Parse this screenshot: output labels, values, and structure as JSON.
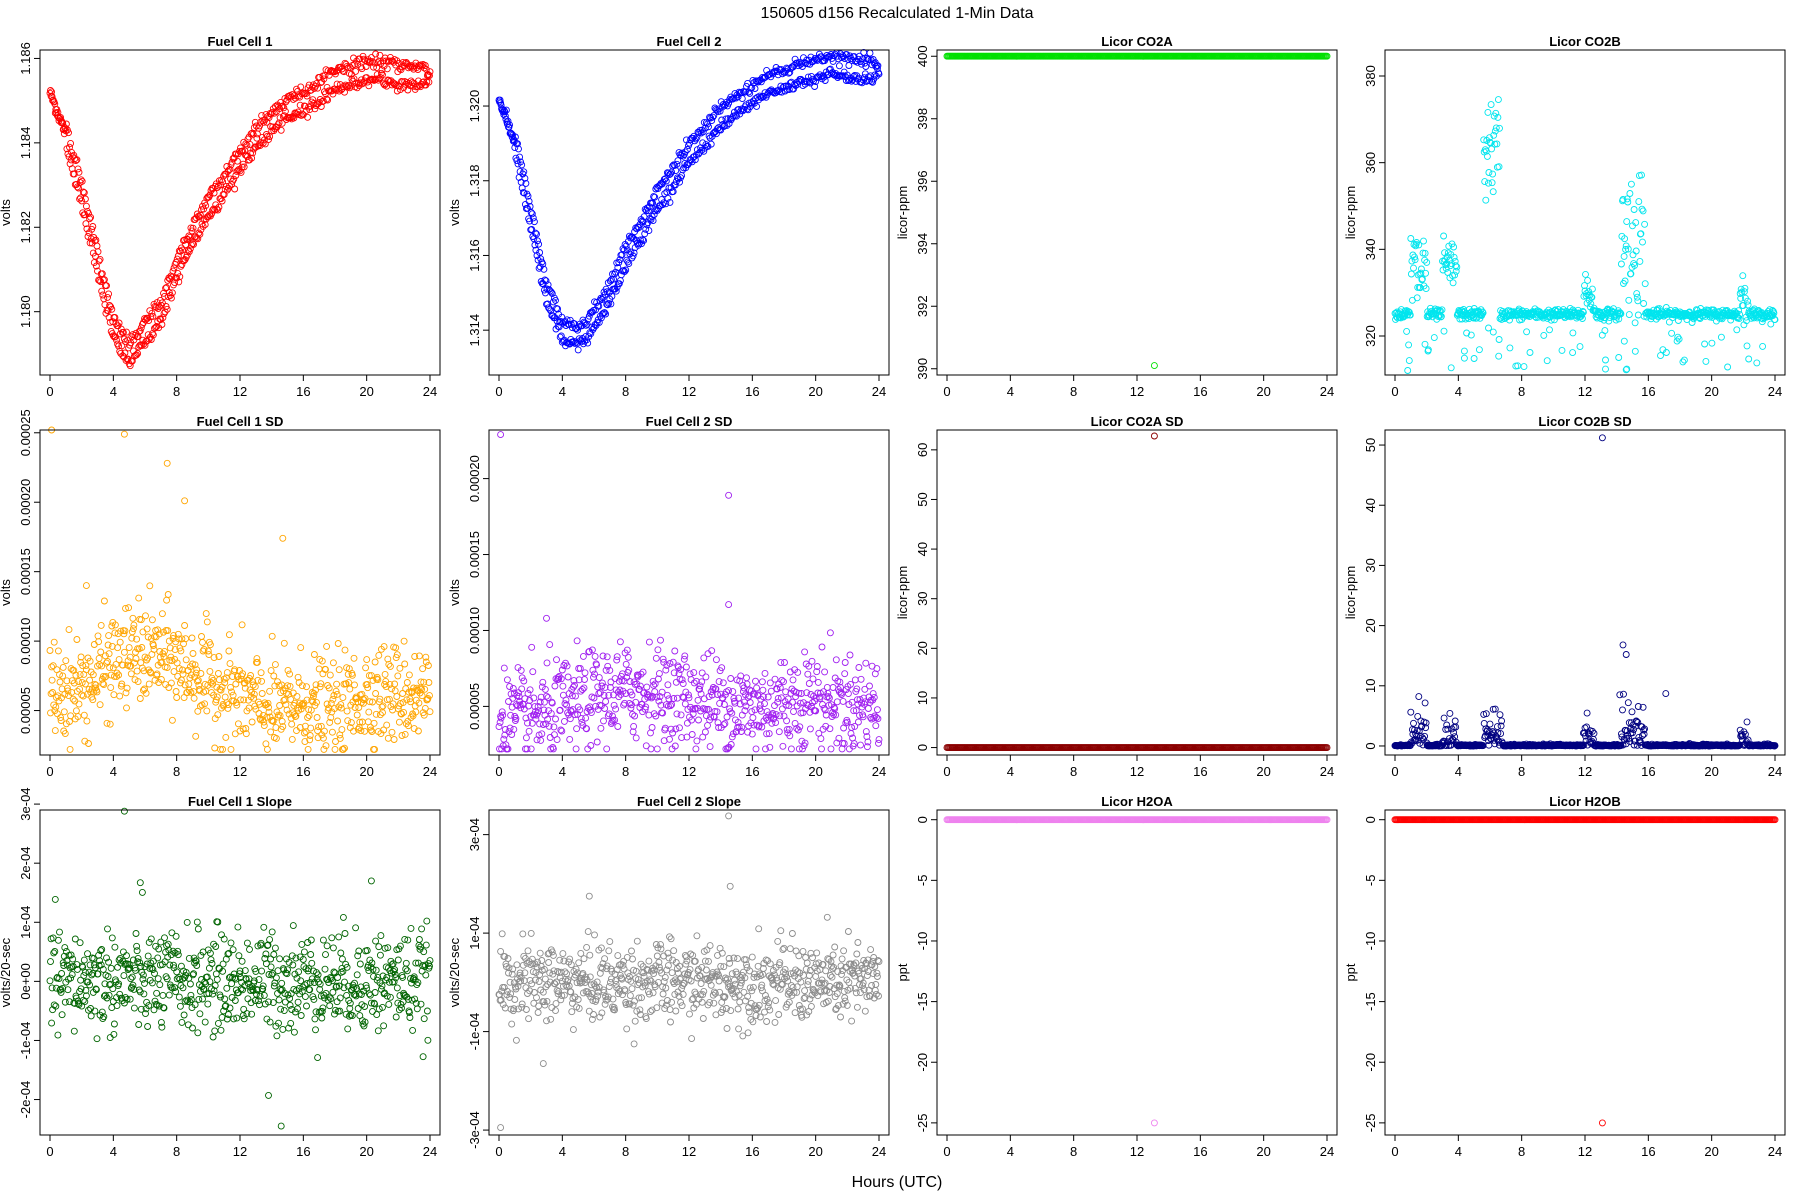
{
  "figure": {
    "suptitle": "150605   d156   Recalculated 1-Min Data",
    "xlabel": "Hours (UTC)"
  },
  "chart_data": [
    {
      "type": "scatter",
      "title": "Fuel Cell 1",
      "ylabel": "volts",
      "color": "#ff0000",
      "xlim": [
        0,
        24
      ],
      "ylim": [
        1.1785,
        1.1862
      ],
      "xticks": [
        0,
        4,
        8,
        12,
        16,
        20,
        24
      ],
      "yticks": [
        1.18,
        1.182,
        1.184,
        1.186
      ],
      "ytick_labels": [
        "1.180",
        "1.182",
        "1.184",
        "1.186"
      ],
      "series": [
        {
          "gen": "fc1",
          "x": [
            0,
            1,
            2,
            3,
            4,
            5,
            6,
            7,
            8,
            9,
            10,
            11,
            12,
            13,
            14,
            15,
            16,
            17,
            18,
            19,
            20,
            21,
            22,
            23,
            24
          ],
          "y": [
            1.1852,
            1.1842,
            1.1828,
            1.1812,
            1.1796,
            1.179,
            1.1795,
            1.18,
            1.181,
            1.1818,
            1.1825,
            1.183,
            1.1836,
            1.1841,
            1.1845,
            1.1848,
            1.185,
            1.1852,
            1.1855,
            1.1856,
            1.1857,
            1.1857,
            1.1856,
            1.1856,
            1.1856
          ],
          "offset": 0.00045,
          "noise": 0.00022
        }
      ]
    },
    {
      "type": "scatter",
      "title": "Fuel Cell 2",
      "ylabel": "volts",
      "color": "#0000ff",
      "xlim": [
        0,
        24
      ],
      "ylim": [
        1.3128,
        1.3215
      ],
      "xticks": [
        0,
        4,
        8,
        12,
        16,
        20,
        24
      ],
      "yticks": [
        1.314,
        1.316,
        1.318,
        1.32
      ],
      "ytick_labels": [
        "1.314",
        "1.316",
        "1.318",
        "1.320"
      ],
      "series": [
        {
          "gen": "fc2",
          "x": [
            0,
            1,
            2,
            3,
            4,
            5,
            6,
            7,
            8,
            9,
            10,
            11,
            12,
            13,
            14,
            15,
            16,
            17,
            18,
            19,
            20,
            21,
            22,
            23,
            24
          ],
          "y": [
            1.3202,
            1.319,
            1.317,
            1.315,
            1.314,
            1.3138,
            1.3143,
            1.315,
            1.316,
            1.3167,
            1.3175,
            1.3181,
            1.3187,
            1.3192,
            1.3197,
            1.32,
            1.3203,
            1.3206,
            1.3207,
            1.3209,
            1.321,
            1.3211,
            1.321,
            1.321,
            1.321
          ],
          "offset": 0.0005,
          "noise": 0.00022
        }
      ]
    },
    {
      "type": "scatter",
      "title": "Licor CO2A",
      "ylabel": "licor-ppm",
      "color": "#00e000",
      "xlim": [
        0,
        24
      ],
      "ylim": [
        389.8,
        400.2
      ],
      "xticks": [
        0,
        4,
        8,
        12,
        16,
        20,
        24
      ],
      "yticks": [
        390,
        392,
        394,
        396,
        398,
        400
      ],
      "ytick_labels": [
        "390",
        "392",
        "394",
        "396",
        "398",
        "400"
      ],
      "series": [
        {
          "gen": "flat",
          "level": 400
        }
      ],
      "points": [
        [
          13.1,
          390.1
        ]
      ]
    },
    {
      "type": "scatter",
      "title": "Licor CO2B",
      "ylabel": "licor-ppm",
      "color": "#00e5ee",
      "xlim": [
        0,
        24
      ],
      "ylim": [
        311,
        386
      ],
      "xticks": [
        0,
        4,
        8,
        12,
        16,
        20,
        24
      ],
      "yticks": [
        320,
        340,
        360,
        380
      ],
      "ytick_labels": [
        "320",
        "340",
        "360",
        "380"
      ],
      "series": [
        {
          "gen": "co2b",
          "base": 325,
          "bursts": [
            [
              1.0,
              2.0,
              335,
              6
            ],
            [
              3.0,
              3.9,
              336,
              3
            ],
            [
              5.6,
              6.6,
              363,
              6
            ],
            [
              11.9,
              12.6,
              330,
              4
            ],
            [
              14.3,
              15.8,
              342,
              9
            ],
            [
              21.8,
              22.3,
              329,
              4
            ]
          ]
        }
      ]
    },
    {
      "type": "scatter",
      "title": "Fuel Cell 1 SD",
      "ylabel": "volts",
      "color": "#ffa500",
      "xlim": [
        0,
        24
      ],
      "ylim": [
        1.8e-05,
        0.000252
      ],
      "xticks": [
        0,
        4,
        8,
        12,
        16,
        20,
        24
      ],
      "yticks": [
        5e-05,
        0.0001,
        0.00015,
        0.0002,
        0.00025
      ],
      "ytick_labels": [
        "0.00005",
        "0.00010",
        "0.00015",
        "0.00020",
        "0.00025"
      ],
      "series": [
        {
          "gen": "sd",
          "x": [
            0,
            2,
            4,
            6,
            8,
            10,
            12,
            14,
            16,
            18,
            20,
            22,
            24
          ],
          "y": [
            6.5e-05,
            6.5e-05,
            8.5e-05,
            9.2e-05,
            8.5e-05,
            7e-05,
            6e-05,
            5e-05,
            5.5e-05,
            5e-05,
            6.2e-05,
            6.2e-05,
            6.2e-05
          ],
          "noise": 1.8e-05
        }
      ],
      "points": [
        [
          0.1,
          0.000252
        ],
        [
          4.7,
          0.000249
        ],
        [
          7.4,
          0.000228
        ],
        [
          8.5,
          0.000201
        ],
        [
          14.7,
          0.000174
        ],
        [
          2.3,
          0.00014
        ]
      ]
    },
    {
      "type": "scatter",
      "title": "Fuel Cell 2 SD",
      "ylabel": "volts",
      "color": "#a020f0",
      "xlim": [
        0,
        24
      ],
      "ylim": [
        1.8e-05,
        0.000232
      ],
      "xticks": [
        0,
        4,
        8,
        12,
        16,
        20,
        24
      ],
      "yticks": [
        5e-05,
        0.0001,
        0.00015,
        0.0002
      ],
      "ytick_labels": [
        "0.00005",
        "0.00010",
        "0.00015",
        "0.00020"
      ],
      "series": [
        {
          "gen": "sd",
          "x": [
            0,
            2,
            4,
            6,
            8,
            10,
            12,
            14,
            16,
            18,
            20,
            22,
            24
          ],
          "y": [
            4e-05,
            4.3e-05,
            4.8e-05,
            5.5e-05,
            6e-05,
            5.8e-05,
            5.5e-05,
            5.2e-05,
            4.8e-05,
            5.2e-05,
            5.6e-05,
            5e-05,
            5.2e-05
          ],
          "noise": 1.6e-05
        }
      ],
      "points": [
        [
          0.1,
          0.000229
        ],
        [
          14.5,
          0.000189
        ],
        [
          14.5,
          0.000117
        ],
        [
          3.0,
          0.000108
        ]
      ]
    },
    {
      "type": "scatter",
      "title": "Licor CO2A SD",
      "ylabel": "licor-ppm",
      "color": "#8b0000",
      "xlim": [
        0,
        24
      ],
      "ylim": [
        -1.5,
        64
      ],
      "xticks": [
        0,
        4,
        8,
        12,
        16,
        20,
        24
      ],
      "yticks": [
        0,
        10,
        20,
        30,
        40,
        50,
        60
      ],
      "ytick_labels": [
        "0",
        "10",
        "20",
        "30",
        "40",
        "50",
        "60"
      ],
      "series": [
        {
          "gen": "flat",
          "level": 0
        }
      ],
      "points": [
        [
          13.1,
          62.8
        ]
      ]
    },
    {
      "type": "scatter",
      "title": "Licor CO2B SD",
      "ylabel": "licor-ppm",
      "color": "#000080",
      "xlim": [
        0,
        24
      ],
      "ylim": [
        -1.5,
        52.5
      ],
      "xticks": [
        0,
        4,
        8,
        12,
        16,
        20,
        24
      ],
      "yticks": [
        0,
        10,
        20,
        30,
        40,
        50
      ],
      "ytick_labels": [
        "0",
        "10",
        "20",
        "30",
        "40",
        "50"
      ],
      "series": [
        {
          "gen": "co2bsd",
          "bursts": [
            [
              1.0,
              2.0,
              3
            ],
            [
              3.0,
              3.9,
              2
            ],
            [
              5.6,
              6.8,
              4
            ],
            [
              11.9,
              12.6,
              2
            ],
            [
              14.3,
              15.8,
              3.5
            ],
            [
              21.8,
              22.3,
              2
            ]
          ]
        }
      ],
      "points": [
        [
          13.1,
          51.2
        ],
        [
          14.4,
          16.8
        ],
        [
          14.6,
          15.2
        ],
        [
          14.2,
          8.5
        ],
        [
          17.1,
          8.7
        ]
      ]
    },
    {
      "type": "scatter",
      "title": "Fuel Cell 1 Slope",
      "ylabel": "volts/20-sec",
      "color": "#006400",
      "xlim": [
        0,
        24
      ],
      "ylim": [
        -0.00026,
        0.00029
      ],
      "xticks": [
        0,
        4,
        8,
        12,
        16,
        20,
        24
      ],
      "yticks": [
        -0.0002,
        -0.0001,
        0,
        0.0001,
        0.0002,
        0.0003
      ],
      "ytick_labels": [
        "-2e-04",
        "-1e-04",
        "0e+00",
        "1e-04",
        "2e-04",
        "3e-04"
      ],
      "series": [
        {
          "gen": "slope",
          "center": 0.0,
          "sigma": 4.2e-05
        }
      ],
      "points": [
        [
          4.7,
          0.000288
        ],
        [
          20.3,
          0.00017
        ],
        [
          13.8,
          -0.000193
        ],
        [
          14.6,
          -0.000245
        ],
        [
          5.7,
          0.000167
        ]
      ]
    },
    {
      "type": "scatter",
      "title": "Fuel Cell 2 Slope",
      "ylabel": "volts/20-sec",
      "color": "#8c8c8c",
      "xlim": [
        0,
        24
      ],
      "ylim": [
        -0.00031,
        0.00035
      ],
      "xticks": [
        0,
        4,
        8,
        12,
        16,
        20,
        24
      ],
      "yticks": [
        -0.0003,
        -0.0001,
        0.0001,
        0.0003
      ],
      "ytick_labels": [
        "-3e-04",
        "-1e-04",
        "1e-04",
        "3e-04"
      ],
      "series": [
        {
          "gen": "slope",
          "center": 0.0,
          "sigma": 4e-05
        }
      ],
      "points": [
        [
          0.1,
          -0.000295
        ],
        [
          14.5,
          0.000338
        ],
        [
          14.6,
          0.000195
        ],
        [
          5.7,
          0.000175
        ],
        [
          2.8,
          -0.000165
        ]
      ]
    },
    {
      "type": "scatter",
      "title": "Licor H2OA",
      "ylabel": "ppt",
      "color": "#ee82ee",
      "xlim": [
        0,
        24
      ],
      "ylim": [
        -26,
        0.8
      ],
      "xticks": [
        0,
        4,
        8,
        12,
        16,
        20,
        24
      ],
      "yticks": [
        -25,
        -20,
        -15,
        -10,
        -5,
        0
      ],
      "ytick_labels": [
        "-25",
        "-20",
        "-15",
        "-10",
        "-5",
        "0"
      ],
      "series": [
        {
          "gen": "flat",
          "level": 0
        }
      ],
      "points": [
        [
          13.1,
          -25
        ]
      ]
    },
    {
      "type": "scatter",
      "title": "Licor H2OB",
      "ylabel": "ppt",
      "color": "#ff0000",
      "xlim": [
        0,
        24
      ],
      "ylim": [
        -26,
        0.8
      ],
      "xticks": [
        0,
        4,
        8,
        12,
        16,
        20,
        24
      ],
      "yticks": [
        -25,
        -20,
        -15,
        -10,
        -5,
        0
      ],
      "ytick_labels": [
        "-25",
        "-20",
        "-15",
        "-10",
        "-5",
        "0"
      ],
      "series": [
        {
          "gen": "flat",
          "level": 0
        }
      ],
      "points": [
        [
          13.1,
          -25
        ]
      ]
    }
  ]
}
